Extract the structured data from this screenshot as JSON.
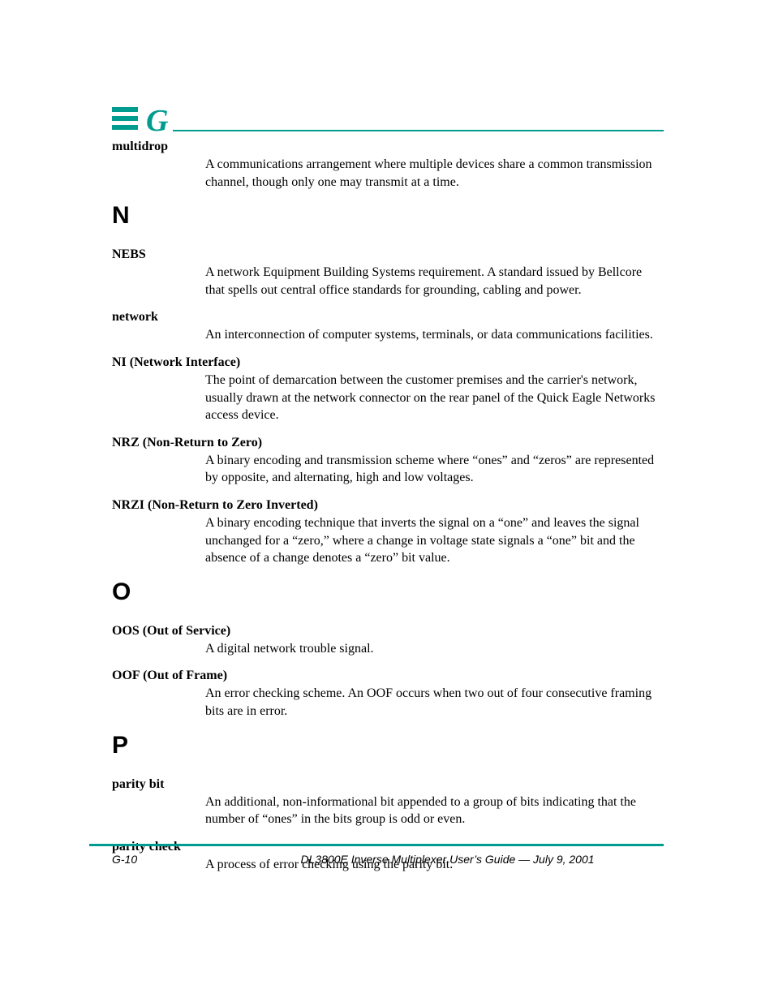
{
  "colors": {
    "accent": "#009c8f",
    "text": "#000000",
    "background": "#ffffff"
  },
  "typography": {
    "body_family": "Book Antiqua / Palatino serif",
    "body_size_pt": 12,
    "term_weight": "bold",
    "section_letter_family": "Arial Black / Helvetica Bold",
    "section_letter_size_pt": 22,
    "header_letter_style": "italic bold serif",
    "header_letter_size_pt": 28,
    "footer_family": "Arial Narrow italic",
    "footer_size_pt": 10
  },
  "header": {
    "letter": "G"
  },
  "sections": {
    "N": "N",
    "O": "O",
    "P": "P"
  },
  "entries": {
    "multidrop": {
      "term": "multidrop",
      "definition": "A communications arrangement where multiple devices share a common transmission channel, though only one may transmit at a time."
    },
    "nebs": {
      "term": "NEBS",
      "definition": "A network Equipment Building Systems requirement. A standard issued by Bellcore that spells out central office standards for grounding, cabling and power."
    },
    "network": {
      "term": "network",
      "definition": "An interconnection of computer systems, terminals, or data communications facilities."
    },
    "ni": {
      "term": "NI (Network Interface)",
      "definition": "The point of demarcation between the customer premises and the carrier's network, usually drawn at the network connector on the rear panel of the Quick Eagle Networks access device."
    },
    "nrz": {
      "term": "NRZ (Non-Return to Zero)",
      "definition": "A binary encoding and transmission scheme where “ones” and “zeros” are represented by opposite, and alternating, high and low voltages."
    },
    "nrzi": {
      "term": "NRZI (Non-Return to Zero Inverted)",
      "definition": "A binary encoding technique that inverts the signal on a “one” and leaves the signal unchanged for a “zero,” where a change in voltage state signals a “one” bit and the absence of a change denotes a “zero” bit value."
    },
    "oos": {
      "term": "OOS (Out of Service)",
      "definition": "A digital network trouble signal."
    },
    "oof": {
      "term": "OOF (Out of Frame)",
      "definition": "An error checking scheme. An OOF occurs when two out of four consecutive framing bits are in error."
    },
    "parity_bit": {
      "term": "parity bit",
      "definition": "An additional, non-informational bit appended to a group of bits indicating that the number of “ones” in the bits group is odd or even."
    },
    "parity_check": {
      "term": "parity check",
      "definition": "A process of error checking using the parity bit."
    }
  },
  "footer": {
    "page": "G-10",
    "title": "DL3800E Inverse Multiplexer User’s Guide — July 9, 2001"
  }
}
